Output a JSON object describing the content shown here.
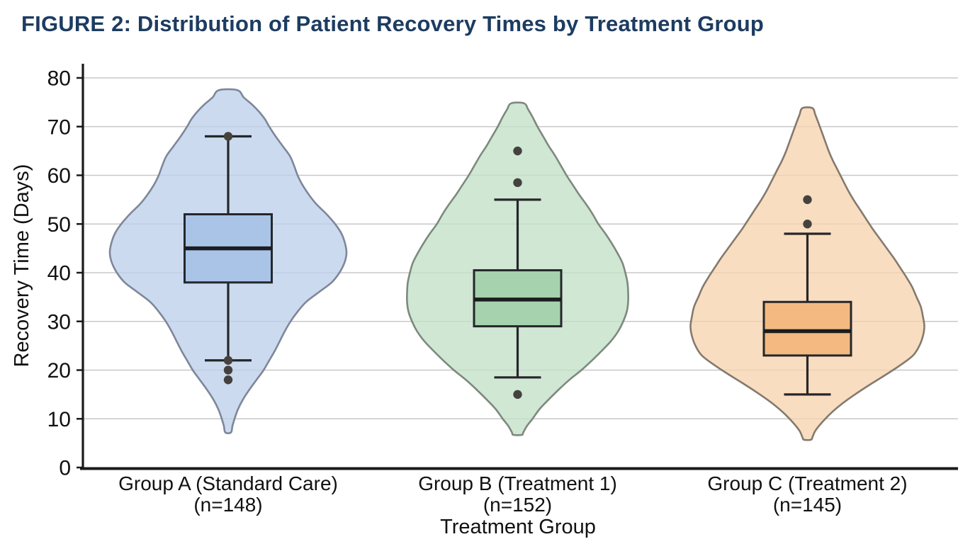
{
  "title": "FIGURE 2: Distribution of Patient Recovery Times by Treatment Group",
  "chart_data": {
    "type": "violin",
    "title": "FIGURE 2: Distribution of Patient Recovery Times by Treatment Group",
    "xlabel": "Treatment Group",
    "ylabel": "Recovery Time (Days)",
    "ylim": [
      0,
      80
    ],
    "yticks": [
      0,
      10,
      20,
      30,
      40,
      50,
      60,
      70,
      80
    ],
    "grid": true,
    "legend": "none",
    "style": {
      "title_color": "#1d3c61",
      "gridline_color": "#c8c8c8",
      "spine_color": "#1a1a1a",
      "tick_label_color": "#111111",
      "box_stroke": "#24272b",
      "median_stroke": "#1b1d20",
      "whisker_stroke": "#26262a",
      "outlier_fill": "#45423e"
    },
    "groups": [
      {
        "id": "group-a",
        "label_lines": [
          "Group A (Standard Care)",
          "(n=148)"
        ],
        "n": 148,
        "violin_fill": "#bccfeb",
        "violin_stroke": "#7e8799",
        "box_fill": "#aac4e8",
        "box": {
          "q1": 38,
          "median": 45,
          "q3": 52,
          "whisker_low": 22,
          "whisker_high": 68
        },
        "outliers": [
          68,
          22,
          20,
          18
        ],
        "violin_range": [
          7.2,
          77.5
        ],
        "violin_profile": [
          [
            77.5,
            13
          ],
          [
            76,
            22
          ],
          [
            74.5,
            34
          ],
          [
            73,
            44
          ],
          [
            71.5,
            52
          ],
          [
            70,
            58
          ],
          [
            68,
            67
          ],
          [
            66,
            77
          ],
          [
            64,
            87
          ],
          [
            62,
            93
          ],
          [
            60,
            98
          ],
          [
            58,
            105
          ],
          [
            56,
            114
          ],
          [
            54,
            125
          ],
          [
            52,
            139
          ],
          [
            50,
            151
          ],
          [
            48,
            160
          ],
          [
            46,
            165
          ],
          [
            44,
            167
          ],
          [
            42,
            164
          ],
          [
            40,
            157
          ],
          [
            38,
            146
          ],
          [
            36,
            128
          ],
          [
            34,
            110
          ],
          [
            32,
            98
          ],
          [
            30,
            88
          ],
          [
            28,
            80
          ],
          [
            26,
            73
          ],
          [
            24,
            66
          ],
          [
            22,
            58
          ],
          [
            20,
            50
          ],
          [
            18,
            40
          ],
          [
            16,
            30
          ],
          [
            14,
            21
          ],
          [
            12,
            14
          ],
          [
            10,
            9
          ],
          [
            8.5,
            6
          ],
          [
            7.2,
            4
          ]
        ]
      },
      {
        "id": "group-b",
        "label_lines": [
          "Group B (Treatment 1)",
          "(n=152)"
        ],
        "n": 152,
        "violin_fill": "#c2e0c6",
        "violin_stroke": "#7d897e",
        "box_fill": "#a6d3ad",
        "box": {
          "q1": 29,
          "median": 34.5,
          "q3": 40.5,
          "whisker_low": 18.5,
          "whisker_high": 55
        },
        "outliers": [
          65,
          58.5,
          15
        ],
        "violin_range": [
          6.7,
          74.8
        ],
        "violin_profile": [
          [
            74.8,
            9
          ],
          [
            73.5,
            15
          ],
          [
            72,
            21
          ],
          [
            70,
            28
          ],
          [
            68,
            36
          ],
          [
            66,
            44
          ],
          [
            64,
            53
          ],
          [
            62,
            61
          ],
          [
            60,
            69
          ],
          [
            58,
            78
          ],
          [
            56,
            87
          ],
          [
            54,
            97
          ],
          [
            52,
            106
          ],
          [
            50,
            114
          ],
          [
            48,
            124
          ],
          [
            46,
            133
          ],
          [
            44,
            141
          ],
          [
            42,
            148
          ],
          [
            40,
            152
          ],
          [
            38,
            155
          ],
          [
            36,
            156
          ],
          [
            34,
            156
          ],
          [
            32,
            154
          ],
          [
            30,
            149
          ],
          [
            28,
            142
          ],
          [
            26,
            132
          ],
          [
            24,
            119
          ],
          [
            22,
            105
          ],
          [
            20,
            90
          ],
          [
            18,
            73
          ],
          [
            16,
            58
          ],
          [
            14,
            44
          ],
          [
            12,
            31
          ],
          [
            10,
            21
          ],
          [
            8.5,
            13
          ],
          [
            7.2,
            8
          ],
          [
            6.7,
            6
          ]
        ]
      },
      {
        "id": "group-c",
        "label_lines": [
          "Group C (Treatment 2)",
          "(n=145)"
        ],
        "n": 145,
        "violin_fill": "#f7d4ae",
        "violin_stroke": "#847a6e",
        "box_fill": "#f4b980",
        "box": {
          "q1": 23,
          "median": 28,
          "q3": 34,
          "whisker_low": 15,
          "whisker_high": 48
        },
        "outliers": [
          55,
          50
        ],
        "violin_range": [
          5.7,
          73.8
        ],
        "violin_profile": [
          [
            73.8,
            7
          ],
          [
            72.5,
            11
          ],
          [
            71,
            15
          ],
          [
            69,
            20
          ],
          [
            67,
            25
          ],
          [
            65,
            30
          ],
          [
            63,
            36
          ],
          [
            61,
            43
          ],
          [
            59,
            50
          ],
          [
            57,
            57
          ],
          [
            55,
            65
          ],
          [
            53,
            74
          ],
          [
            51,
            83
          ],
          [
            49,
            92
          ],
          [
            47,
            102
          ],
          [
            45,
            112
          ],
          [
            43,
            122
          ],
          [
            41,
            131
          ],
          [
            39,
            140
          ],
          [
            37,
            148
          ],
          [
            35,
            154
          ],
          [
            33,
            160
          ],
          [
            31,
            163
          ],
          [
            29,
            165
          ],
          [
            27,
            163
          ],
          [
            25,
            158
          ],
          [
            23,
            149
          ],
          [
            21,
            131
          ],
          [
            19,
            110
          ],
          [
            17,
            88
          ],
          [
            15,
            67
          ],
          [
            13,
            48
          ],
          [
            11,
            32
          ],
          [
            9,
            19
          ],
          [
            7.5,
            11
          ],
          [
            6.2,
            7
          ],
          [
            5.7,
            5
          ]
        ]
      }
    ]
  }
}
